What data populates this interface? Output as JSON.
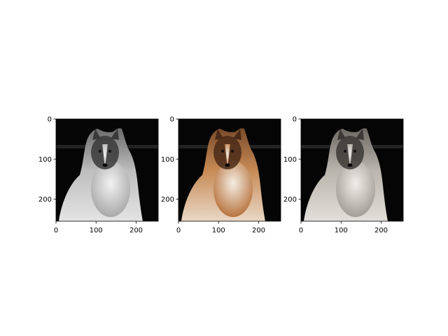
{
  "panels": [
    {
      "id": "panel-grayscale",
      "image": "collie-portrait",
      "colormap": "grayscale",
      "xlim": [
        0,
        255
      ],
      "ylim": [
        255,
        0
      ],
      "xticks": [
        0,
        100,
        200
      ],
      "yticks": [
        0,
        100,
        200
      ],
      "xtick_labels": [
        "0",
        "100",
        "200"
      ],
      "ytick_labels": [
        "0",
        "100",
        "200"
      ]
    },
    {
      "id": "panel-color",
      "image": "collie-portrait",
      "colormap": "rgb",
      "xlim": [
        0,
        255
      ],
      "ylim": [
        255,
        0
      ],
      "xticks": [
        0,
        100,
        200
      ],
      "yticks": [
        0,
        100,
        200
      ],
      "xtick_labels": [
        "0",
        "100",
        "200"
      ],
      "ytick_labels": [
        "0",
        "100",
        "200"
      ]
    },
    {
      "id": "panel-desaturated",
      "image": "collie-portrait",
      "colormap": "desaturated",
      "xlim": [
        0,
        255
      ],
      "ylim": [
        255,
        0
      ],
      "xticks": [
        0,
        100,
        200
      ],
      "yticks": [
        0,
        100,
        200
      ],
      "xtick_labels": [
        "0",
        "100",
        "200"
      ],
      "ytick_labels": [
        "0",
        "100",
        "200"
      ]
    }
  ],
  "colors": {
    "background": "#ffffff",
    "photo_background": "#050505",
    "axis": "#000000"
  }
}
